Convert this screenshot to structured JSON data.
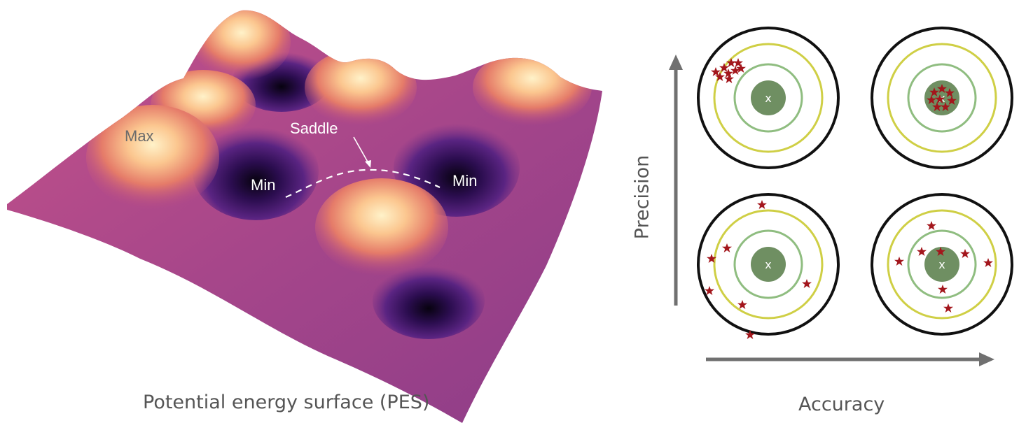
{
  "pes": {
    "caption": "Potential energy surface (PES)",
    "labels": {
      "max": "Max",
      "saddle": "Saddle",
      "min_left": "Min",
      "min_right": "Min"
    }
  },
  "targets": {
    "x_axis_label": "Accuracy",
    "y_axis_label": "Precision",
    "center_mark": "x",
    "panels": [
      {
        "position": "top-left",
        "precision": "high",
        "accuracy": "low"
      },
      {
        "position": "top-right",
        "precision": "high",
        "accuracy": "high"
      },
      {
        "position": "bottom-left",
        "precision": "low",
        "accuracy": "low"
      },
      {
        "position": "bottom-right",
        "precision": "low",
        "accuracy": "high"
      }
    ]
  },
  "colors": {
    "surface_base": "#b04a86",
    "peak": "#fde6b0",
    "well": "#0e0520",
    "ring_outer": "#111111",
    "ring_yellow": "#cfcf45",
    "ring_green": "#8fbd80",
    "bullseye": "#6f8f62",
    "star": "#a3161c",
    "axis": "#707070"
  }
}
